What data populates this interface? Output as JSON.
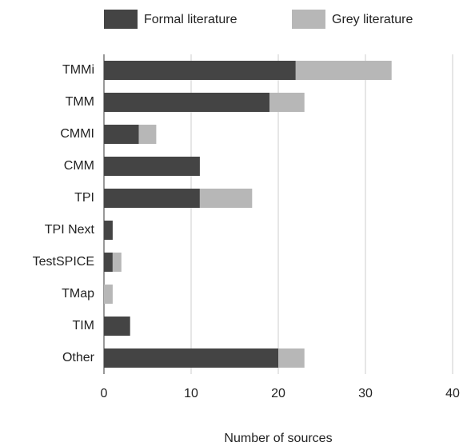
{
  "chart_data": {
    "type": "bar",
    "orientation": "horizontal",
    "stacked": true,
    "x_label": "Number of sources",
    "categories": [
      "TMMi",
      "TMM",
      "CMMI",
      "CMM",
      "TPI",
      "TPI Next",
      "TestSPICE",
      "TMap",
      "TIM",
      "Other"
    ],
    "series": [
      {
        "name": "Formal literature",
        "color": "#444444",
        "values": [
          22,
          19,
          4,
          11,
          11,
          1,
          1,
          0,
          3,
          20
        ]
      },
      {
        "name": "Grey literature",
        "color": "#b7b7b7",
        "values": [
          11,
          4,
          2,
          0,
          6,
          0,
          1,
          1,
          0,
          3
        ]
      }
    ],
    "xlim": [
      0,
      40
    ],
    "xticks": [
      0,
      10,
      20,
      30,
      40
    ],
    "grid": true,
    "legend": "top"
  }
}
